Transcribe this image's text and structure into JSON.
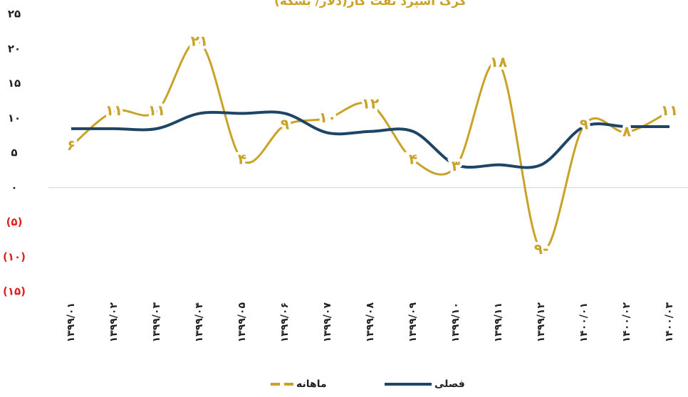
{
  "chart_data": {
    "type": "line",
    "title": "کرک اسپرد نفت گاز(دلار/ بشکه)",
    "categories": [
      "۱۳۹۹/۰۱",
      "۱۳۹۹/۰۲",
      "۱۳۹۹/۰۳",
      "۱۳۹۹/۰۴",
      "۱۳۹۹/۰۵",
      "۱۳۹۹/۰۶",
      "۱۳۹۹/۰۷",
      "۱۳۹۹/۰۸",
      "۱۳۹۹/۰۹",
      "۱۳۹۹/۱۰",
      "۱۳۹۹/۱۱",
      "۱۳۹۹/۱۲",
      "۱۴۰۰/۰۱",
      "۱۴۰۰/۰۲",
      "۱۴۰۰/۰۳"
    ],
    "series": [
      {
        "name": "ماهانه",
        "color": "#c9a227",
        "dashed": true,
        "values": [
          6,
          11,
          11,
          21,
          4,
          9,
          10,
          12,
          4,
          3,
          18,
          -9,
          9,
          8,
          11
        ],
        "value_labels": [
          "۶",
          "۱۱",
          "۱۱",
          "۲۱",
          "۴",
          "۹",
          "۱۰",
          "۱۲",
          "۴",
          "۳",
          "۱۸",
          "۹-",
          "۹",
          "۸",
          "۱۱"
        ]
      },
      {
        "name": "فصلی",
        "color": "#1f4566",
        "dashed": false,
        "values": [
          8.5,
          8.5,
          8.5,
          10.7,
          10.7,
          10.7,
          7.9,
          8.1,
          8.1,
          3.3,
          3.3,
          3.3,
          8.8,
          8.8,
          8.8
        ]
      }
    ],
    "ylim": [
      -15,
      25
    ],
    "yticks": [
      {
        "value": 25,
        "label": "۲۵"
      },
      {
        "value": 20,
        "label": "۲۰"
      },
      {
        "value": 15,
        "label": "۱۵"
      },
      {
        "value": 10,
        "label": "۱۰"
      },
      {
        "value": 5,
        "label": "۵"
      },
      {
        "value": 0,
        "label": "۰"
      },
      {
        "value": -5,
        "label": "(۵)"
      },
      {
        "value": -10,
        "label": "(۱۰)"
      },
      {
        "value": -15,
        "label": "(۱۵)"
      }
    ],
    "negative_color": "#e02020"
  }
}
